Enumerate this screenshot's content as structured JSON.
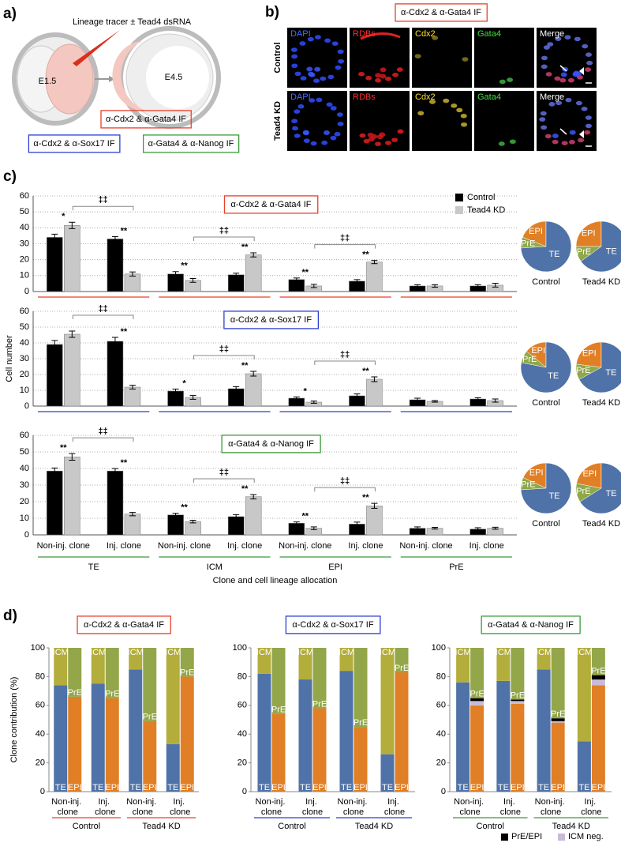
{
  "panel_labels": [
    "a)",
    "b)",
    "c)",
    "d)"
  ],
  "panel_a": {
    "tracer": "Lineage tracer ± Tead4 dsRNA",
    "stages": [
      "E1.5",
      "E4.5"
    ],
    "stainings": [
      "α-Cdx2 & α-Gata4 IF",
      "α-Cdx2 & α-Sox17 IF",
      "α-Gata4 & α-Nanog IF"
    ]
  },
  "panel_b": {
    "title": "α-Cdx2 & α-Gata4 IF",
    "channels": [
      "DAPI",
      "RDBs",
      "Cdx2",
      "Gata4",
      "Merge"
    ],
    "rows": [
      "Control",
      "Tead4 KD"
    ]
  },
  "chart_data": [
    {
      "type": "bar",
      "title": "α-Cdx2 & α-Gata4 IF",
      "accent": "#e8402b",
      "ylim": [
        0,
        60
      ],
      "yticks": [
        0,
        10,
        20,
        30,
        40,
        50,
        60
      ],
      "grid": true,
      "legend": "top-right",
      "series": [
        {
          "name": "Control",
          "color": "#000000",
          "values": [
            34,
            33,
            11,
            10.5,
            7.5,
            6.5,
            3.5,
            3.5
          ],
          "errors": [
            2,
            1.5,
            1.5,
            1,
            1,
            1,
            0.8,
            0.8
          ]
        },
        {
          "name": "Tead4 KD",
          "color": "#c8c8c8",
          "values": [
            41.5,
            11,
            7,
            23,
            3.5,
            18.5,
            3.5,
            4
          ],
          "errors": [
            2,
            1.3,
            1.2,
            1.3,
            1,
            1,
            0.8,
            1.2
          ]
        }
      ],
      "significance": [
        "*",
        "**",
        "**",
        "**",
        "**",
        "**",
        null,
        null
      ],
      "group_comparisons": [
        "‡‡",
        "‡‡",
        "‡‡",
        null
      ]
    },
    {
      "type": "bar",
      "title": "α-Cdx2 & α-Sox17 IF",
      "accent": "#2b3fd0",
      "ylabel": "Cell number",
      "ylim": [
        0,
        60
      ],
      "yticks": [
        0,
        10,
        20,
        30,
        40,
        50,
        60
      ],
      "grid": true,
      "series": [
        {
          "color": "#000000",
          "values": [
            39,
            41,
            9.5,
            11,
            5,
            6.5,
            4,
            4.5
          ],
          "errors": [
            2.5,
            2.5,
            1.3,
            1.3,
            0.8,
            1.2,
            1,
            0.8
          ]
        },
        {
          "color": "#c8c8c8",
          "values": [
            45.5,
            12,
            5.5,
            20.5,
            2.5,
            17,
            3,
            3.5
          ],
          "errors": [
            2,
            1.2,
            1.2,
            1.5,
            0.7,
            1.5,
            0.5,
            1
          ]
        }
      ],
      "significance": [
        null,
        "**",
        "*",
        "**",
        "*",
        "**",
        null,
        null
      ],
      "group_comparisons": [
        "‡‡",
        "‡‡",
        "‡‡",
        null
      ]
    },
    {
      "type": "bar",
      "title": "α-Gata4 & α-Nanog IF",
      "accent": "#3a9a3a",
      "ylim": [
        0,
        60
      ],
      "yticks": [
        0,
        10,
        20,
        30,
        40,
        50,
        60
      ],
      "grid": true,
      "categories": [
        "Non-inj. clone",
        "Inj. clone",
        "Non-inj. clone",
        "Inj. clone",
        "Non-inj. clone",
        "Inj. clone",
        "Non-inj. clone",
        "Inj. clone"
      ],
      "groups": [
        "TE",
        "ICM",
        "EPI",
        "PrE"
      ],
      "xlabel": "Clone and cell lineage allocation",
      "series": [
        {
          "color": "#000000",
          "values": [
            38.5,
            38.5,
            12,
            11,
            7,
            6.5,
            4,
            3.5
          ],
          "errors": [
            1.8,
            1.5,
            1,
            1.2,
            0.8,
            1.2,
            0.8,
            0.8
          ]
        },
        {
          "color": "#c8c8c8",
          "values": [
            47,
            12.5,
            8,
            23,
            4,
            17.5,
            4,
            4
          ],
          "errors": [
            2,
            1,
            0.8,
            1.3,
            0.8,
            1.5,
            0.5,
            0.6
          ]
        }
      ],
      "significance": [
        "**",
        "**",
        "**",
        "**",
        "**",
        "**",
        null,
        null
      ],
      "group_comparisons": [
        "‡‡",
        "‡‡",
        "‡‡",
        null
      ]
    },
    {
      "type": "pie",
      "title": "Control",
      "categories": [
        "EPI",
        "PrE",
        "TE"
      ],
      "values": [
        19,
        7,
        74
      ],
      "colors": [
        "#e07f25",
        "#8fa84a",
        "#4f72a8"
      ]
    },
    {
      "type": "pie",
      "title": "Tead4 KD",
      "categories": [
        "EPI",
        "PrE",
        "TE"
      ],
      "values": [
        25,
        10,
        65
      ],
      "colors": [
        "#e07f25",
        "#8fa84a",
        "#4f72a8"
      ]
    },
    {
      "type": "pie",
      "title": "Control",
      "categories": [
        "EPI",
        "PrE",
        "TE"
      ],
      "values": [
        14,
        8,
        78
      ],
      "colors": [
        "#e07f25",
        "#8fa84a",
        "#4f72a8"
      ]
    },
    {
      "type": "pie",
      "title": "Tead4 KD",
      "categories": [
        "EPI",
        "PrE",
        "TE"
      ],
      "values": [
        23,
        10,
        67
      ],
      "colors": [
        "#e07f25",
        "#8fa84a",
        "#4f72a8"
      ]
    },
    {
      "type": "pie",
      "title": "Control",
      "categories": [
        "EPI",
        "PrE",
        "TE"
      ],
      "values": [
        18,
        8,
        74
      ],
      "colors": [
        "#e07f25",
        "#8fa84a",
        "#4f72a8"
      ]
    },
    {
      "type": "pie",
      "title": "Tead4 KD",
      "categories": [
        "EPI",
        "PrE",
        "TE"
      ],
      "values": [
        22,
        12,
        66
      ],
      "colors": [
        "#e07f25",
        "#8fa84a",
        "#4f72a8"
      ]
    },
    {
      "type": "stacked_bar",
      "title": "α-Cdx2 & α-Gata4 IF",
      "accent": "#e8402b",
      "ylabel": "Clone contribution (%)",
      "ylim": [
        0,
        100
      ],
      "yticks": [
        0,
        20,
        40,
        60,
        80,
        100
      ],
      "categories": [
        "Non-inj. clone",
        "Inj. clone",
        "Non-inj. clone",
        "Inj. clone"
      ],
      "groups": [
        "Control",
        "Tead4 KD"
      ],
      "stacks": [
        [
          {
            "name": "TE",
            "color": "#4f72a8",
            "values": [
              74,
              75,
              85,
              33
            ]
          },
          {
            "name": "ICM",
            "color": "#b3ad3c",
            "values": [
              26,
              25,
              15,
              67
            ]
          }
        ],
        [
          {
            "name": "EPI",
            "color": "#e07f25",
            "values": [
              66,
              65,
              49,
              80
            ]
          },
          {
            "name": "PrE",
            "color": "#93a64a",
            "values": [
              34,
              35,
              51,
              20
            ]
          }
        ]
      ]
    },
    {
      "type": "stacked_bar",
      "title": "α-Cdx2 & α-Sox17 IF",
      "accent": "#2b3fd0",
      "ylim": [
        0,
        100
      ],
      "yticks": [
        0,
        20,
        40,
        60,
        80,
        100
      ],
      "categories": [
        "Non-inj. clone",
        "Inj. clone",
        "Non-inj. clone",
        "Inj. clone"
      ],
      "groups": [
        "Control",
        "Tead4 KD"
      ],
      "stacks": [
        [
          {
            "name": "TE",
            "color": "#4f72a8",
            "values": [
              82,
              78,
              84,
              26
            ]
          },
          {
            "name": "ICM",
            "color": "#b3ad3c",
            "values": [
              18,
              22,
              16,
              74
            ]
          }
        ],
        [
          {
            "name": "EPI",
            "color": "#e07f25",
            "values": [
              54,
              58,
              45,
              83
            ]
          },
          {
            "name": "PrE",
            "color": "#93a64a",
            "values": [
              46,
              42,
              55,
              17
            ]
          }
        ]
      ]
    },
    {
      "type": "stacked_bar",
      "title": "α-Gata4 & α-Nanog IF",
      "accent": "#3a9a3a",
      "ylim": [
        0,
        100
      ],
      "yticks": [
        0,
        20,
        40,
        60,
        80,
        100
      ],
      "categories": [
        "Non-inj. clone",
        "Inj. clone",
        "Non-inj. clone",
        "Inj. clone"
      ],
      "groups": [
        "Control",
        "Tead4 KD"
      ],
      "stacks": [
        [
          {
            "name": "TE",
            "color": "#4f72a8",
            "values": [
              76,
              77,
              85,
              35
            ]
          },
          {
            "name": "ICM",
            "color": "#b3ad3c",
            "values": [
              24,
              23,
              15,
              65
            ]
          }
        ],
        [
          {
            "name": "EPI",
            "color": "#e07f25",
            "values": [
              60,
              61,
              48,
              74
            ]
          },
          {
            "name": "ICM neg.",
            "color": "#c9bad9",
            "values": [
              3,
              2,
              1,
              4
            ]
          },
          {
            "name": "PrE/EPI",
            "color": "#000000",
            "values": [
              2,
              1,
              2,
              3
            ]
          },
          {
            "name": "PrE",
            "color": "#93a64a",
            "values": [
              35,
              36,
              49,
              19
            ]
          }
        ]
      ]
    }
  ]
}
